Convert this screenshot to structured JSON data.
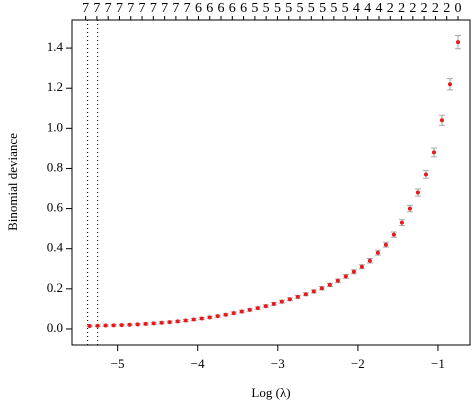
{
  "chart_data": {
    "type": "scatter",
    "xlabel": "Log (λ)",
    "ylabel": "Binomial deviance",
    "color": "#e41a1c",
    "error_color": "#a8a8a8",
    "x": [
      -5.35,
      -5.25,
      -5.15,
      -5.05,
      -4.95,
      -4.85,
      -4.75,
      -4.65,
      -4.55,
      -4.45,
      -4.35,
      -4.25,
      -4.15,
      -4.05,
      -3.95,
      -3.85,
      -3.75,
      -3.65,
      -3.55,
      -3.45,
      -3.35,
      -3.25,
      -3.15,
      -3.05,
      -2.95,
      -2.85,
      -2.75,
      -2.65,
      -2.55,
      -2.45,
      -2.35,
      -2.25,
      -2.15,
      -2.05,
      -1.95,
      -1.85,
      -1.75,
      -1.65,
      -1.55,
      -1.45,
      -1.35,
      -1.25,
      -1.15,
      -1.05,
      -0.95,
      -0.85,
      -0.75
    ],
    "values": [
      0.015,
      0.016,
      0.017,
      0.018,
      0.019,
      0.021,
      0.023,
      0.025,
      0.028,
      0.031,
      0.034,
      0.038,
      0.042,
      0.047,
      0.052,
      0.058,
      0.064,
      0.071,
      0.079,
      0.087,
      0.095,
      0.104,
      0.114,
      0.125,
      0.136,
      0.148,
      0.16,
      0.173,
      0.187,
      0.203,
      0.22,
      0.24,
      0.262,
      0.285,
      0.31,
      0.34,
      0.38,
      0.42,
      0.47,
      0.53,
      0.6,
      0.68,
      0.77,
      0.88,
      1.04,
      1.22,
      1.43
    ],
    "errors": [
      0.004,
      0.004,
      0.004,
      0.004,
      0.004,
      0.004,
      0.004,
      0.005,
      0.005,
      0.005,
      0.005,
      0.005,
      0.005,
      0.005,
      0.005,
      0.005,
      0.005,
      0.005,
      0.006,
      0.006,
      0.006,
      0.006,
      0.006,
      0.007,
      0.007,
      0.007,
      0.007,
      0.007,
      0.008,
      0.008,
      0.008,
      0.009,
      0.009,
      0.01,
      0.01,
      0.011,
      0.012,
      0.012,
      0.013,
      0.015,
      0.016,
      0.018,
      0.019,
      0.022,
      0.025,
      0.028,
      0.033
    ],
    "vlines": [
      -5.375,
      -5.25
    ],
    "top_labels": [
      7,
      7,
      7,
      7,
      7,
      7,
      7,
      7,
      7,
      7,
      6,
      6,
      6,
      6,
      6,
      5,
      5,
      5,
      5,
      5,
      5,
      5,
      5,
      5,
      4,
      4,
      4,
      2,
      2,
      2,
      2,
      2,
      2,
      0
    ],
    "xlim": [
      -5.57,
      -0.6
    ],
    "ylim": [
      -0.08,
      1.54
    ],
    "xticks": [
      {
        "value": -5,
        "label": "−5"
      },
      {
        "value": -4,
        "label": "−4"
      },
      {
        "value": -3,
        "label": "−3"
      },
      {
        "value": -2,
        "label": "−2"
      },
      {
        "value": -1,
        "label": "−1"
      }
    ],
    "yticks": [
      {
        "value": 0,
        "label": "0.0"
      },
      {
        "value": 0.2,
        "label": "0.2"
      },
      {
        "value": 0.4,
        "label": "0.4"
      },
      {
        "value": 0.6,
        "label": "0.6"
      },
      {
        "value": 0.8,
        "label": "0.8"
      },
      {
        "value": 1.0,
        "label": "1.0"
      },
      {
        "value": 1.2,
        "label": "1.2"
      },
      {
        "value": 1.4,
        "label": "1.4"
      }
    ]
  }
}
